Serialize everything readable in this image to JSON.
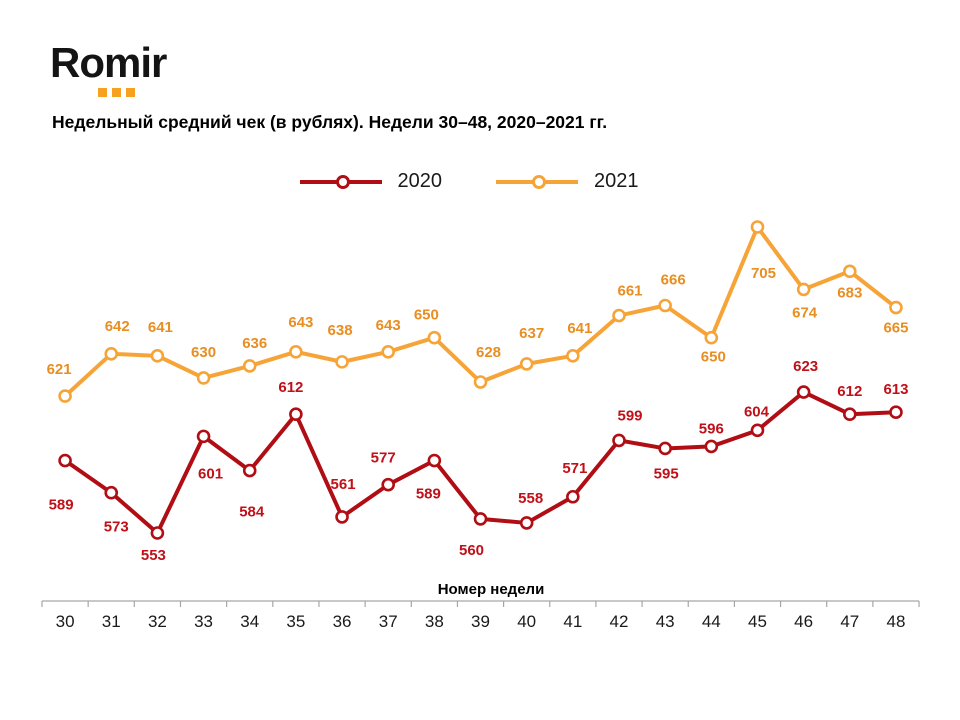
{
  "logo": {
    "text": "Romir",
    "dot_color": "#F6A120"
  },
  "title": "Недельный средний чек (в рублях). Недели 30–48, 2020–2021 гг.",
  "chart_data": {
    "type": "line",
    "title": "Недельный средний чек (в рублях). Недели 30–48, 2020–2021 гг.",
    "xlabel": "Номер недели",
    "ylabel": "",
    "grid": false,
    "y_axis_visible": false,
    "legend_position": "top-center",
    "ylim": [
      545,
      715
    ],
    "categories": [
      "30",
      "31",
      "32",
      "33",
      "34",
      "35",
      "36",
      "37",
      "38",
      "39",
      "40",
      "41",
      "42",
      "43",
      "44",
      "45",
      "46",
      "47",
      "48"
    ],
    "series": [
      {
        "name": "2020",
        "color": "#B00E14",
        "label_color": "#C01018",
        "values": [
          589,
          573,
          553,
          601,
          584,
          612,
          561,
          577,
          589,
          560,
          558,
          571,
          599,
          595,
          596,
          604,
          623,
          612,
          613
        ],
        "label_offsets": [
          [
            -4,
            49
          ],
          [
            5,
            39
          ],
          [
            -4,
            27
          ],
          [
            7,
            42
          ],
          [
            2,
            46
          ],
          [
            -5,
            -22
          ],
          [
            1,
            -28
          ],
          [
            -5,
            -22
          ],
          [
            -6,
            38
          ],
          [
            -9,
            36
          ],
          [
            4,
            -20
          ],
          [
            2,
            -24
          ],
          [
            11,
            -20
          ],
          [
            1,
            30
          ],
          [
            0,
            -13
          ],
          [
            -1,
            -14
          ],
          [
            2,
            -21
          ],
          [
            0,
            -18
          ],
          [
            0,
            -18
          ]
        ]
      },
      {
        "name": "2021",
        "color": "#F6A438",
        "label_color": "#E88E22",
        "values": [
          621,
          642,
          641,
          630,
          636,
          643,
          638,
          643,
          650,
          628,
          637,
          641,
          661,
          666,
          650,
          705,
          674,
          683,
          665
        ],
        "label_offsets": [
          [
            -6,
            -22
          ],
          [
            6,
            -23
          ],
          [
            3,
            -24
          ],
          [
            0,
            -21
          ],
          [
            5,
            -18
          ],
          [
            5,
            -25
          ],
          [
            -2,
            -27
          ],
          [
            0,
            -22
          ],
          [
            -8,
            -18
          ],
          [
            8,
            -25
          ],
          [
            5,
            -26
          ],
          [
            7,
            -23
          ],
          [
            11,
            -20
          ],
          [
            8,
            -21
          ],
          [
            2,
            24
          ],
          [
            6,
            51
          ],
          [
            1,
            28
          ],
          [
            0,
            26
          ],
          [
            0,
            25
          ]
        ]
      }
    ]
  }
}
